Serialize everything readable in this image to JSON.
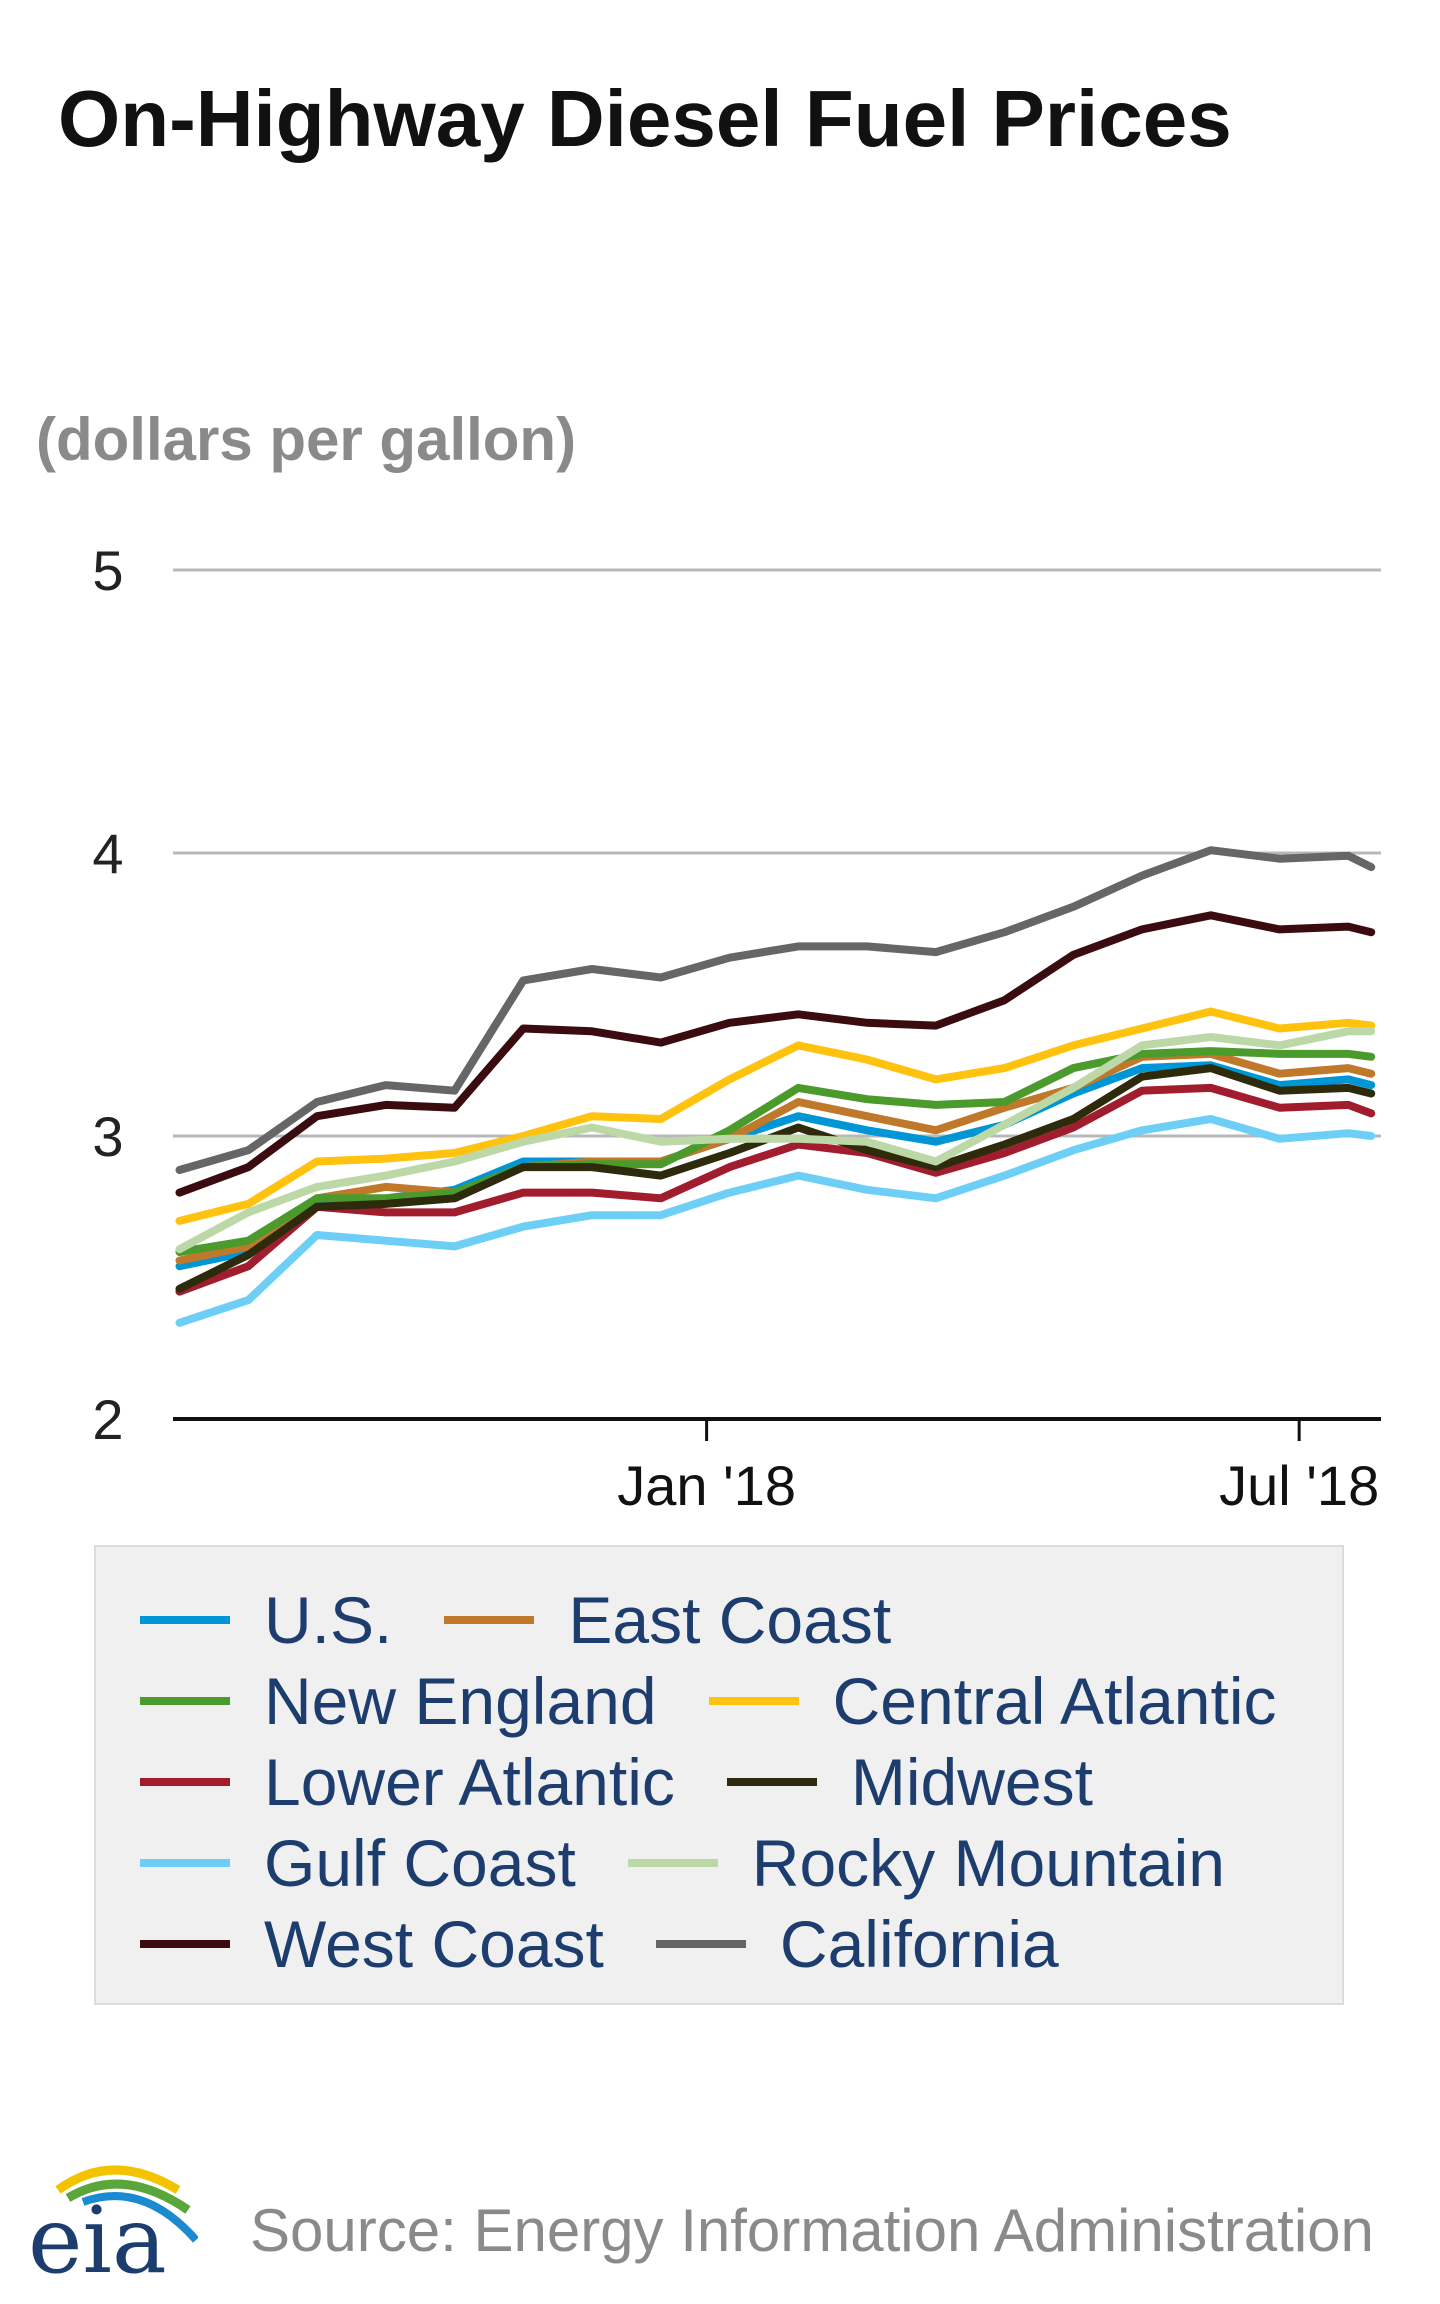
{
  "chart_data": {
    "type": "line",
    "title": "On-Highway Diesel Fuel Prices",
    "subtitle": "(dollars per gallon)",
    "ylim": [
      2,
      5
    ],
    "yticks": [
      "5",
      "4",
      "3",
      "2"
    ],
    "ytick_values": [
      5,
      4,
      3,
      2
    ],
    "xlim": [
      "2017-07-22",
      "2018-07-26"
    ],
    "xticks": [
      {
        "label": "Jan '18",
        "date": "2018-01-01"
      },
      {
        "label": "Jul '18",
        "date": "2018-07-01"
      }
    ],
    "grid": true,
    "legend_position": "bottom",
    "x": [
      "2017-07-24",
      "2017-08-14",
      "2017-09-04",
      "2017-09-25",
      "2017-10-16",
      "2017-11-06",
      "2017-11-27",
      "2017-12-18",
      "2018-01-08",
      "2018-01-29",
      "2018-02-19",
      "2018-03-12",
      "2018-04-02",
      "2018-04-23",
      "2018-05-14",
      "2018-06-04",
      "2018-06-25",
      "2018-07-16",
      "2018-07-23"
    ],
    "series": [
      {
        "name": "U.S.",
        "color": "#0096d6",
        "values": [
          2.54,
          2.59,
          2.76,
          2.78,
          2.81,
          2.91,
          2.91,
          2.91,
          2.99,
          3.07,
          3.02,
          2.98,
          3.04,
          3.15,
          3.24,
          3.25,
          3.18,
          3.2,
          3.18
        ]
      },
      {
        "name": "East Coast",
        "color": "#c0782b",
        "values": [
          2.56,
          2.61,
          2.78,
          2.82,
          2.8,
          2.89,
          2.91,
          2.91,
          2.99,
          3.12,
          3.07,
          3.02,
          3.1,
          3.17,
          3.28,
          3.29,
          3.22,
          3.24,
          3.22
        ]
      },
      {
        "name": "New England",
        "color": "#4a9a2c",
        "values": [
          2.59,
          2.63,
          2.78,
          2.78,
          2.8,
          2.89,
          2.9,
          2.9,
          3.02,
          3.17,
          3.13,
          3.11,
          3.12,
          3.24,
          3.29,
          3.3,
          3.29,
          3.29,
          3.28
        ]
      },
      {
        "name": "Central Atlantic",
        "color": "#ffc20e",
        "values": [
          2.7,
          2.76,
          2.91,
          2.92,
          2.94,
          3.0,
          3.07,
          3.06,
          3.2,
          3.32,
          3.27,
          3.2,
          3.24,
          3.32,
          3.38,
          3.44,
          3.38,
          3.4,
          3.39
        ]
      },
      {
        "name": "Lower Atlantic",
        "color": "#a11d2e",
        "values": [
          2.45,
          2.54,
          2.75,
          2.73,
          2.73,
          2.8,
          2.8,
          2.78,
          2.89,
          2.97,
          2.94,
          2.87,
          2.94,
          3.03,
          3.16,
          3.17,
          3.1,
          3.11,
          3.08
        ]
      },
      {
        "name": "Midwest",
        "color": "#2e2a0c",
        "values": [
          2.46,
          2.58,
          2.75,
          2.76,
          2.78,
          2.89,
          2.89,
          2.86,
          2.94,
          3.03,
          2.95,
          2.89,
          2.97,
          3.06,
          3.21,
          3.24,
          3.16,
          3.17,
          3.15
        ]
      },
      {
        "name": "Gulf Coast",
        "color": "#6dcff6",
        "values": [
          2.34,
          2.42,
          2.65,
          2.63,
          2.61,
          2.68,
          2.72,
          2.72,
          2.8,
          2.86,
          2.81,
          2.78,
          2.86,
          2.95,
          3.02,
          3.06,
          2.99,
          3.01,
          3.0
        ]
      },
      {
        "name": "Rocky Mountain",
        "color": "#bcd8a6",
        "values": [
          2.6,
          2.73,
          2.82,
          2.86,
          2.91,
          2.98,
          3.03,
          2.98,
          2.99,
          2.99,
          2.98,
          2.91,
          3.04,
          3.17,
          3.32,
          3.35,
          3.32,
          3.37,
          3.37
        ]
      },
      {
        "name": "West Coast",
        "color": "#3a0c10",
        "values": [
          2.8,
          2.89,
          3.07,
          3.11,
          3.1,
          3.38,
          3.37,
          3.33,
          3.4,
          3.43,
          3.4,
          3.39,
          3.48,
          3.64,
          3.73,
          3.78,
          3.73,
          3.74,
          3.72
        ]
      },
      {
        "name": "California",
        "color": "#666666",
        "values": [
          2.88,
          2.95,
          3.12,
          3.18,
          3.16,
          3.55,
          3.59,
          3.56,
          3.63,
          3.67,
          3.67,
          3.65,
          3.72,
          3.81,
          3.92,
          4.01,
          3.98,
          3.99,
          3.95
        ]
      }
    ]
  },
  "footer": {
    "logo_text": "eia",
    "source": "Source: Energy Information Administration"
  }
}
